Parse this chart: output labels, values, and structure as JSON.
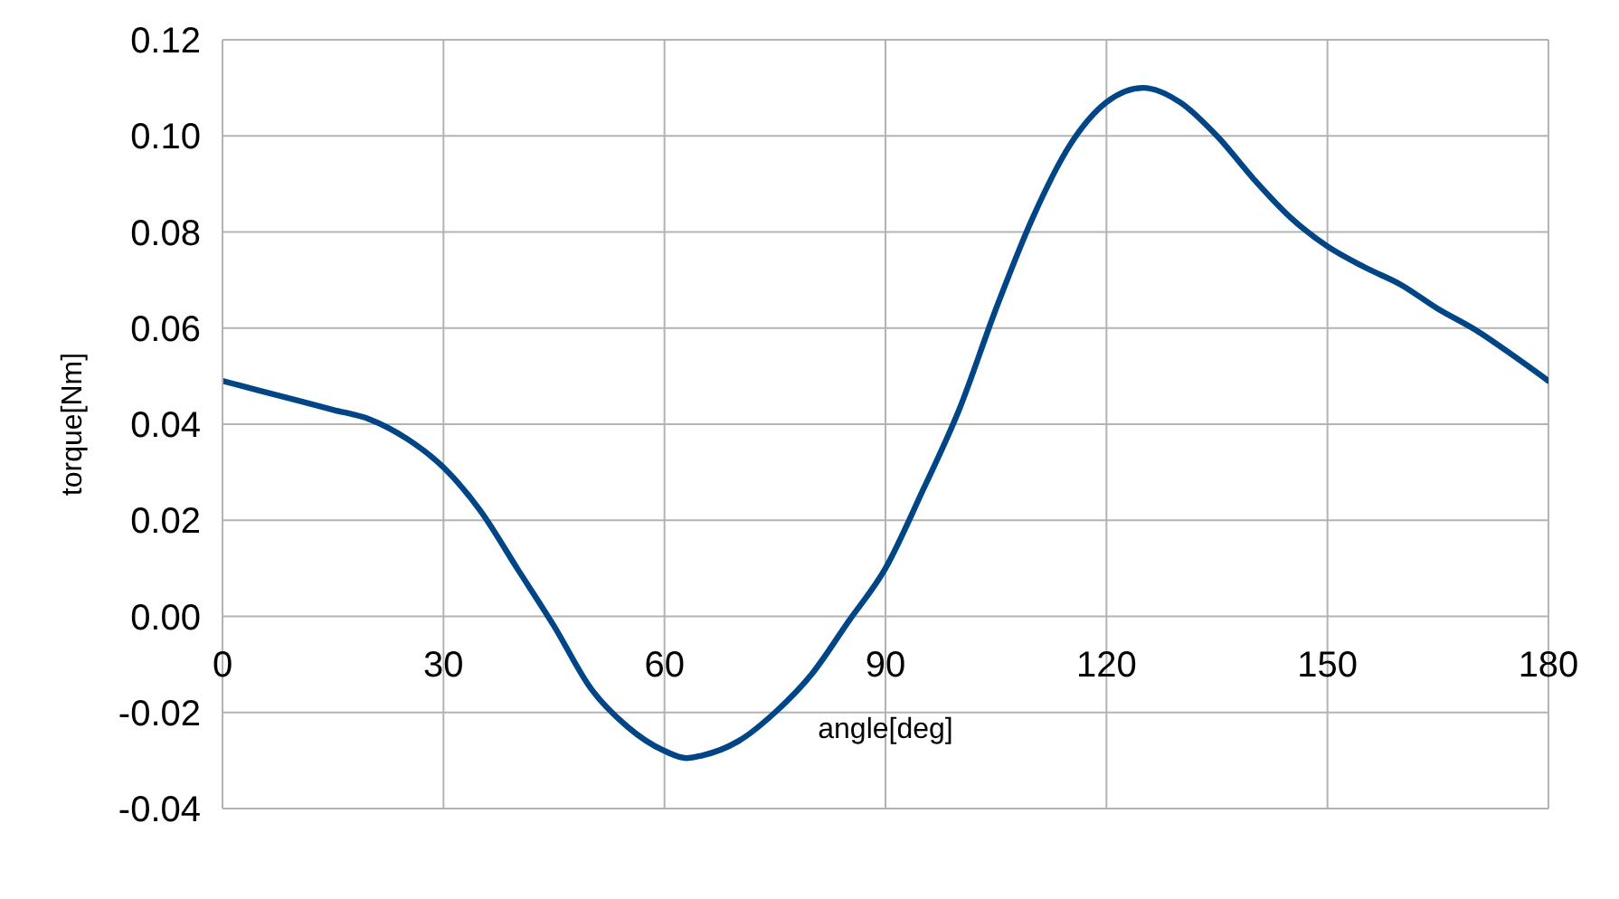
{
  "chart_data": {
    "type": "line",
    "xlabel": "angle[deg]",
    "ylabel": "torque[Nm]",
    "x": [
      0,
      5,
      10,
      15,
      20,
      25,
      30,
      35,
      40,
      45,
      50,
      55,
      60,
      63,
      65,
      70,
      75,
      80,
      85,
      90,
      95,
      100,
      105,
      110,
      115,
      120,
      125,
      130,
      135,
      140,
      145,
      150,
      155,
      160,
      165,
      170,
      175,
      180
    ],
    "series": [
      {
        "color": "#004586",
        "values": [
          0.049,
          0.047,
          0.045,
          0.043,
          0.041,
          0.037,
          0.031,
          0.022,
          0.01,
          -0.002,
          -0.015,
          -0.023,
          -0.028,
          -0.0295,
          -0.029,
          -0.026,
          -0.02,
          -0.012,
          -0.001,
          0.01,
          0.026,
          0.043,
          0.064,
          0.083,
          0.098,
          0.107,
          0.11,
          0.107,
          0.1,
          0.091,
          0.083,
          0.077,
          0.0727,
          0.069,
          0.064,
          0.0597,
          0.0545,
          0.049
        ]
      }
    ],
    "xlim": [
      0,
      180
    ],
    "xticks": [
      0,
      30,
      60,
      90,
      120,
      150,
      180
    ],
    "ylim": [
      -0.04,
      0.12
    ],
    "yticks": [
      {
        "value": -0.04,
        "label": "-0.04"
      },
      {
        "value": -0.02,
        "label": "-0.02"
      },
      {
        "value": 0,
        "label": "0.00"
      },
      {
        "value": 0.02,
        "label": "0.02"
      },
      {
        "value": 0.04,
        "label": "0.04"
      },
      {
        "value": 0.06,
        "label": "0.06"
      },
      {
        "value": 0.08,
        "label": "0.08"
      },
      {
        "value": 0.1,
        "label": "0.10"
      },
      {
        "value": 0.12,
        "label": "0.12"
      }
    ],
    "grid": true,
    "marker": "none",
    "line_style": "solid"
  }
}
